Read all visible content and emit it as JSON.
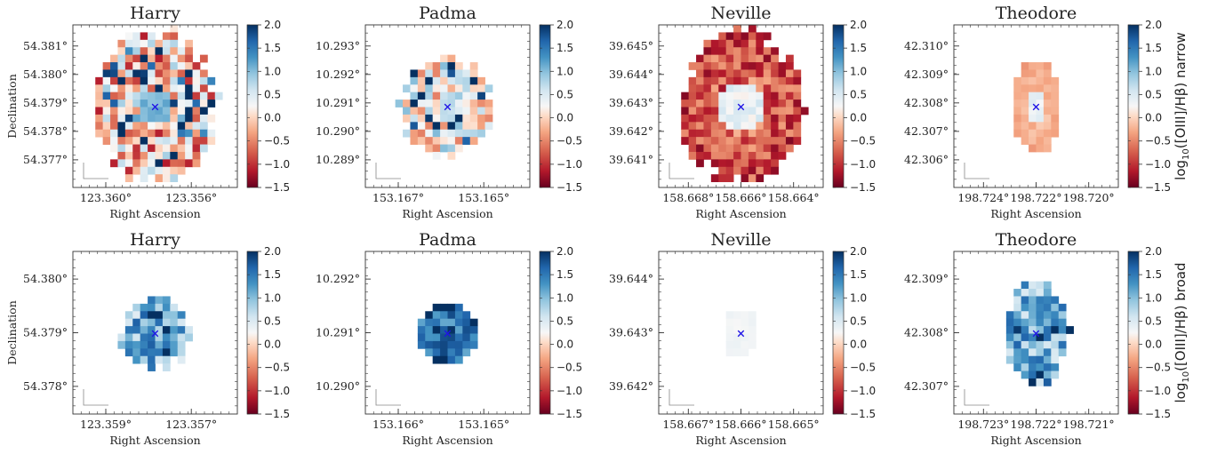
{
  "chart_data": {
    "type": "heatmap",
    "colormap": "RdBu",
    "colorbar": {
      "vmin": -1.5,
      "vmax": 2.0,
      "ticks": [
        "2.0",
        "1.5",
        "1.0",
        "0.5",
        "0.0",
        "−0.5",
        "−1.0",
        "−1.5"
      ]
    },
    "xlabel": "Right Ascension",
    "ylabel": "Declination",
    "marker": {
      "symbol": "×",
      "color": "#1f14e6"
    },
    "rows": [
      {
        "row_label": "log10([OIII]/Hβ) narrow",
        "row_label_base": "log",
        "row_label_sub": "10",
        "row_label_rest": "([OIII]/Hβ) narrow",
        "panels": [
          {
            "title": "Harry",
            "xticks": [
              "123.360°",
              "123.356°"
            ],
            "yticks": [
              "54.381°",
              "54.380°",
              "54.379°",
              "54.378°",
              "54.377°"
            ],
            "pattern": "noisy",
            "radius": 0.93,
            "aspect": 0.78,
            "bias": -0.15,
            "noise": 1.0,
            "center_value": 0.9,
            "marker_x": 0.5,
            "marker_y": 0.5
          },
          {
            "title": "Padma",
            "xticks": [
              "153.167°",
              "153.165°"
            ],
            "yticks": [
              "10.293°",
              "10.292°",
              "10.291°",
              "10.290°",
              "10.289°"
            ],
            "pattern": "noisy",
            "radius": 0.58,
            "aspect": 0.95,
            "bias": 0.25,
            "noise": 0.8,
            "center_value": 0.5,
            "marker_x": 0.5,
            "marker_y": 0.5
          },
          {
            "title": "Neville",
            "xticks": [
              "158.668°",
              "158.666°",
              "158.664°"
            ],
            "yticks": [
              "39.645°",
              "39.644°",
              "39.643°",
              "39.642°",
              "39.641°"
            ],
            "pattern": "ring",
            "radius": 0.9,
            "aspect": 0.82,
            "bias": -0.6,
            "noise": 0.5,
            "center_value": 0.4,
            "marker_x": 0.5,
            "marker_y": 0.5
          },
          {
            "title": "Theodore",
            "xticks": [
              "198.724°",
              "198.722°",
              "198.720°"
            ],
            "yticks": [
              "42.310°",
              "42.309°",
              "42.308°",
              "42.307°",
              "42.306°"
            ],
            "pattern": "smooth",
            "radius": 0.55,
            "aspect": 0.55,
            "bias": -0.1,
            "noise": 0.25,
            "center_value": 0.6,
            "marker_x": 0.5,
            "marker_y": 0.5
          }
        ]
      },
      {
        "row_label": "log10([OIII]/Hβ)  broad",
        "row_label_base": "log",
        "row_label_sub": "10",
        "row_label_rest": "([OIII]/Hβ)  broad",
        "panels": [
          {
            "title": "Harry",
            "xticks": [
              "123.359°",
              "123.357°"
            ],
            "yticks": [
              "54.380°",
              "54.379°",
              "54.378°"
            ],
            "pattern": "blue",
            "radius": 0.42,
            "aspect": 1.0,
            "bias": 1.0,
            "noise": 0.6,
            "center_value": 1.1,
            "marker_x": 0.5,
            "marker_y": 0.5
          },
          {
            "title": "Padma",
            "xticks": [
              "153.166°",
              "153.165°"
            ],
            "yticks": [
              "10.292°",
              "10.291°",
              "10.290°"
            ],
            "pattern": "blue",
            "radius": 0.38,
            "aspect": 1.0,
            "bias": 1.5,
            "noise": 0.35,
            "center_value": 1.5,
            "marker_x": 0.5,
            "marker_y": 0.5
          },
          {
            "title": "Neville",
            "xticks": [
              "158.667°",
              "158.666°",
              "158.665°"
            ],
            "yticks": [
              "39.644°",
              "39.643°",
              "39.642°"
            ],
            "pattern": "pale",
            "radius": 0.3,
            "aspect": 0.75,
            "bias": 0.3,
            "noise": 0.1,
            "center_value": 0.35,
            "marker_x": 0.5,
            "marker_y": 0.5
          },
          {
            "title": "Theodore",
            "xticks": [
              "198.723°",
              "198.722°",
              "198.721°"
            ],
            "yticks": [
              "42.309°",
              "42.308°",
              "42.307°"
            ],
            "pattern": "blue",
            "radius": 0.62,
            "aspect": 0.62,
            "bias": 1.1,
            "noise": 0.6,
            "center_value": 1.2,
            "marker_x": 0.5,
            "marker_y": 0.5
          }
        ]
      }
    ]
  }
}
